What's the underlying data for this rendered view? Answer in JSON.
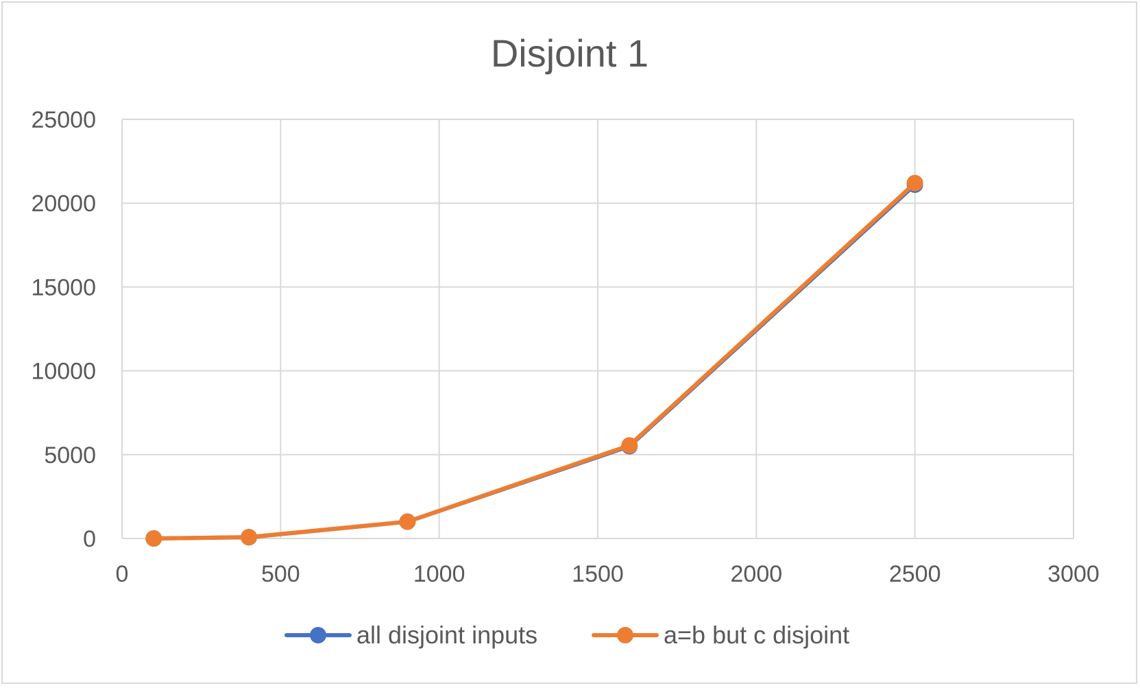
{
  "chart_data": {
    "type": "scatter",
    "title": "Disjoint 1",
    "xlabel": "",
    "ylabel": "",
    "xlim": [
      0,
      3000
    ],
    "ylim": [
      0,
      25000
    ],
    "x_ticks": [
      "0",
      "500",
      "1000",
      "1500",
      "2000",
      "2500",
      "3000"
    ],
    "y_ticks": [
      "0",
      "5000",
      "10000",
      "15000",
      "20000",
      "25000"
    ],
    "grid": true,
    "legend_position": "bottom",
    "series": [
      {
        "name": "all disjoint inputs",
        "color": "#4472c4",
        "points": [
          [
            100,
            0
          ],
          [
            400,
            70
          ],
          [
            900,
            1000
          ],
          [
            1600,
            5500
          ],
          [
            2500,
            21100
          ]
        ]
      },
      {
        "name": "a=b but c disjoint",
        "color": "#ed7d31",
        "points": [
          [
            100,
            0
          ],
          [
            400,
            80
          ],
          [
            900,
            1000
          ],
          [
            1600,
            5550
          ],
          [
            2500,
            21200
          ]
        ]
      }
    ]
  }
}
